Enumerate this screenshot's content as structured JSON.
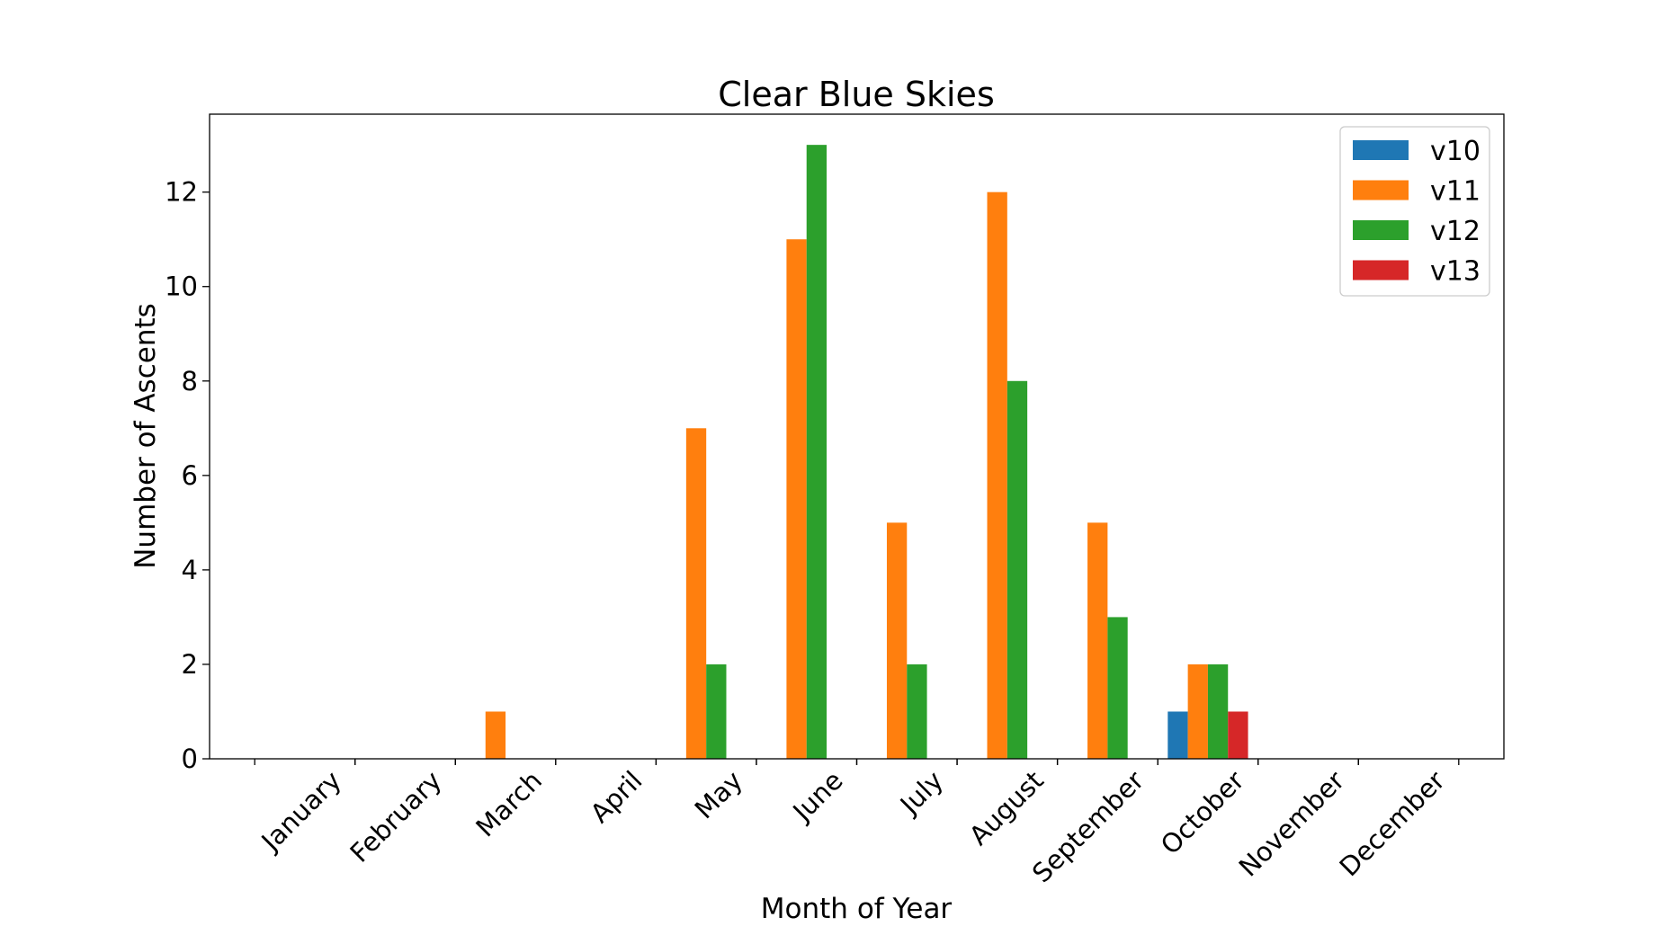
{
  "chart_data": {
    "type": "bar",
    "title": "Clear Blue Skies",
    "xlabel": "Month of Year",
    "ylabel": "Number of Ascents",
    "categories": [
      "January",
      "February",
      "March",
      "April",
      "May",
      "June",
      "July",
      "August",
      "September",
      "October",
      "November",
      "December"
    ],
    "series": [
      {
        "name": "v10",
        "color": "#1f77b4",
        "values": [
          0,
          0,
          0,
          0,
          0,
          0,
          0,
          0,
          0,
          1,
          0,
          0
        ]
      },
      {
        "name": "v11",
        "color": "#ff7f0e",
        "values": [
          0,
          0,
          1,
          0,
          7,
          11,
          5,
          12,
          5,
          2,
          0,
          0
        ]
      },
      {
        "name": "v12",
        "color": "#2ca02c",
        "values": [
          0,
          0,
          0,
          0,
          2,
          13,
          2,
          8,
          3,
          2,
          0,
          0
        ]
      },
      {
        "name": "v13",
        "color": "#d62728",
        "values": [
          0,
          0,
          0,
          0,
          0,
          0,
          0,
          0,
          0,
          1,
          0,
          0
        ]
      }
    ],
    "ylim": [
      0,
      13.65
    ],
    "yticks": [
      0,
      2,
      4,
      6,
      8,
      10,
      12
    ],
    "grid": false,
    "legend": "top-right"
  }
}
